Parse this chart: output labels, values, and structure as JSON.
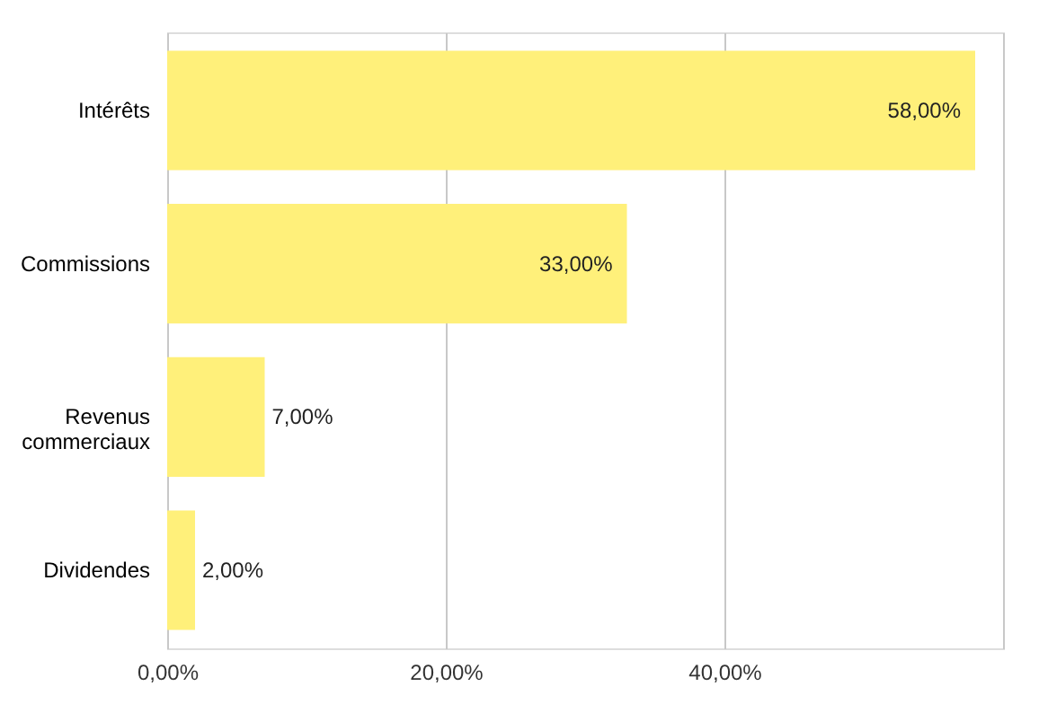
{
  "chart_data": {
    "type": "bar",
    "orientation": "horizontal",
    "categories": [
      "Intérêts",
      "Commissions",
      "Revenus commerciaux",
      "Dividendes"
    ],
    "values": [
      58,
      33,
      7,
      2
    ],
    "value_labels": [
      "58,00%",
      "33,00%",
      "7,00%",
      "2,00%"
    ],
    "color": "#fff07a",
    "xlim": [
      0,
      60
    ],
    "xticks": [
      {
        "value": 0,
        "label": "0,00%"
      },
      {
        "value": 20,
        "label": "20,00%"
      },
      {
        "value": 40,
        "label": "40,00%"
      },
      {
        "value": 60,
        "label": null
      }
    ],
    "grid": "x"
  }
}
